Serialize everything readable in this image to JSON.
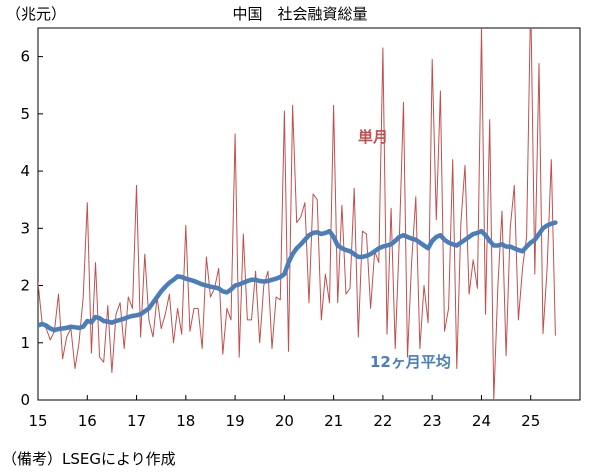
{
  "chart_data": {
    "type": "line",
    "unit_label": "（兆元）",
    "title": "中国　社会融資総量",
    "xlabel": "",
    "ylabel": "",
    "x_ticks": [
      "15",
      "16",
      "17",
      "18",
      "19",
      "20",
      "21",
      "22",
      "23",
      "24",
      "25"
    ],
    "y_ticks": [
      "0",
      "1",
      "2",
      "3",
      "4",
      "5",
      "6"
    ],
    "ylim": [
      0,
      6.5
    ],
    "xlim": [
      2015.0,
      2026.0
    ],
    "grid": false,
    "series": [
      {
        "name": "単月",
        "color": "#c0504d",
        "x": [
          2015.0,
          2015.083,
          2015.167,
          2015.25,
          2015.333,
          2015.417,
          2015.5,
          2015.583,
          2015.667,
          2015.75,
          2015.833,
          2015.917,
          2016.0,
          2016.083,
          2016.167,
          2016.25,
          2016.333,
          2016.417,
          2016.5,
          2016.583,
          2016.667,
          2016.75,
          2016.833,
          2016.917,
          2017.0,
          2017.083,
          2017.167,
          2017.25,
          2017.333,
          2017.417,
          2017.5,
          2017.583,
          2017.667,
          2017.75,
          2017.833,
          2017.917,
          2018.0,
          2018.083,
          2018.167,
          2018.25,
          2018.333,
          2018.417,
          2018.5,
          2018.583,
          2018.667,
          2018.75,
          2018.833,
          2018.917,
          2019.0,
          2019.083,
          2019.167,
          2019.25,
          2019.333,
          2019.417,
          2019.5,
          2019.583,
          2019.667,
          2019.75,
          2019.833,
          2019.917,
          2020.0,
          2020.083,
          2020.167,
          2020.25,
          2020.333,
          2020.417,
          2020.5,
          2020.583,
          2020.667,
          2020.75,
          2020.833,
          2020.917,
          2021.0,
          2021.083,
          2021.167,
          2021.25,
          2021.333,
          2021.417,
          2021.5,
          2021.583,
          2021.667,
          2021.75,
          2021.833,
          2021.917,
          2022.0,
          2022.083,
          2022.167,
          2022.25,
          2022.333,
          2022.417,
          2022.5,
          2022.583,
          2022.667,
          2022.75,
          2022.833,
          2022.917,
          2023.0,
          2023.083,
          2023.167,
          2023.25,
          2023.333,
          2023.417,
          2023.5,
          2023.583,
          2023.667,
          2023.75,
          2023.833,
          2023.917,
          2024.0,
          2024.083,
          2024.167,
          2024.25,
          2024.333,
          2024.417,
          2024.5,
          2024.583,
          2024.667,
          2024.75,
          2024.833,
          2024.917,
          2025.0,
          2025.083,
          2025.167,
          2025.25,
          2025.333,
          2025.417,
          2025.5
        ],
        "values": [
          2.05,
          1.35,
          1.25,
          1.05,
          1.2,
          1.85,
          0.72,
          1.1,
          1.25,
          0.55,
          1.0,
          1.8,
          3.45,
          0.82,
          2.4,
          0.75,
          0.66,
          1.65,
          0.48,
          1.5,
          1.7,
          0.9,
          1.8,
          1.6,
          3.75,
          1.1,
          2.55,
          1.4,
          1.1,
          1.8,
          1.25,
          1.5,
          1.85,
          1.0,
          1.6,
          1.15,
          3.05,
          1.2,
          1.6,
          1.6,
          0.9,
          2.5,
          1.8,
          1.95,
          2.3,
          0.8,
          1.6,
          1.4,
          4.65,
          0.75,
          2.9,
          1.4,
          1.4,
          2.25,
          1.0,
          2.0,
          2.25,
          0.9,
          1.8,
          1.75,
          5.05,
          0.85,
          5.15,
          3.1,
          3.2,
          3.45,
          1.7,
          3.6,
          3.5,
          1.4,
          2.2,
          1.7,
          5.15,
          1.7,
          3.4,
          1.85,
          1.95,
          3.7,
          1.1,
          2.95,
          2.9,
          1.6,
          2.6,
          2.4,
          6.15,
          1.15,
          3.35,
          0.9,
          2.8,
          5.2,
          0.75,
          2.4,
          3.55,
          0.9,
          2.0,
          1.35,
          5.95,
          3.15,
          5.4,
          1.2,
          1.6,
          4.2,
          0.55,
          3.1,
          4.1,
          1.85,
          2.45,
          1.95,
          6.5,
          1.5,
          4.9,
          0.0,
          2.0,
          3.3,
          0.77,
          3.0,
          3.75,
          1.4,
          2.3,
          2.85,
          7.06,
          2.2,
          5.88,
          1.16,
          2.3,
          4.2,
          1.13
        ]
      },
      {
        "name": "12ヶ月平均",
        "color": "#4a7ebb",
        "x": [
          2015.0,
          2015.083,
          2015.167,
          2015.25,
          2015.333,
          2015.417,
          2015.5,
          2015.583,
          2015.667,
          2015.75,
          2015.833,
          2015.917,
          2016.0,
          2016.083,
          2016.167,
          2016.25,
          2016.333,
          2016.417,
          2016.5,
          2016.583,
          2016.667,
          2016.75,
          2016.833,
          2016.917,
          2017.0,
          2017.083,
          2017.167,
          2017.25,
          2017.333,
          2017.417,
          2017.5,
          2017.583,
          2017.667,
          2017.75,
          2017.833,
          2017.917,
          2018.0,
          2018.083,
          2018.167,
          2018.25,
          2018.333,
          2018.417,
          2018.5,
          2018.583,
          2018.667,
          2018.75,
          2018.833,
          2018.917,
          2019.0,
          2019.083,
          2019.167,
          2019.25,
          2019.333,
          2019.417,
          2019.5,
          2019.583,
          2019.667,
          2019.75,
          2019.833,
          2019.917,
          2020.0,
          2020.083,
          2020.167,
          2020.25,
          2020.333,
          2020.417,
          2020.5,
          2020.583,
          2020.667,
          2020.75,
          2020.833,
          2020.917,
          2021.0,
          2021.083,
          2021.167,
          2021.25,
          2021.333,
          2021.417,
          2021.5,
          2021.583,
          2021.667,
          2021.75,
          2021.833,
          2021.917,
          2022.0,
          2022.083,
          2022.167,
          2022.25,
          2022.333,
          2022.417,
          2022.5,
          2022.583,
          2022.667,
          2022.75,
          2022.833,
          2022.917,
          2023.0,
          2023.083,
          2023.167,
          2023.25,
          2023.333,
          2023.417,
          2023.5,
          2023.583,
          2023.667,
          2023.75,
          2023.833,
          2023.917,
          2024.0,
          2024.083,
          2024.167,
          2024.25,
          2024.333,
          2024.417,
          2024.5,
          2024.583,
          2024.667,
          2024.75,
          2024.833,
          2024.917,
          2025.0,
          2025.083,
          2025.167,
          2025.25,
          2025.333,
          2025.417,
          2025.5
        ],
        "values": [
          1.3,
          1.33,
          1.3,
          1.25,
          1.22,
          1.24,
          1.25,
          1.26,
          1.28,
          1.27,
          1.26,
          1.28,
          1.38,
          1.36,
          1.45,
          1.43,
          1.38,
          1.37,
          1.35,
          1.38,
          1.4,
          1.42,
          1.45,
          1.47,
          1.48,
          1.5,
          1.55,
          1.6,
          1.7,
          1.8,
          1.9,
          1.98,
          2.05,
          2.1,
          2.16,
          2.15,
          2.12,
          2.1,
          2.08,
          2.05,
          2.02,
          2.0,
          1.98,
          1.97,
          1.95,
          1.9,
          1.88,
          1.93,
          2.0,
          2.02,
          2.05,
          2.08,
          2.1,
          2.1,
          2.08,
          2.07,
          2.08,
          2.1,
          2.12,
          2.15,
          2.2,
          2.4,
          2.55,
          2.65,
          2.72,
          2.8,
          2.88,
          2.92,
          2.93,
          2.9,
          2.92,
          2.95,
          2.85,
          2.7,
          2.65,
          2.62,
          2.6,
          2.55,
          2.5,
          2.5,
          2.52,
          2.55,
          2.6,
          2.65,
          2.68,
          2.7,
          2.72,
          2.78,
          2.85,
          2.88,
          2.85,
          2.82,
          2.8,
          2.75,
          2.7,
          2.65,
          2.78,
          2.85,
          2.88,
          2.8,
          2.75,
          2.72,
          2.7,
          2.75,
          2.8,
          2.85,
          2.9,
          2.92,
          2.95,
          2.88,
          2.78,
          2.7,
          2.7,
          2.72,
          2.68,
          2.68,
          2.65,
          2.62,
          2.6,
          2.68,
          2.75,
          2.8,
          2.9,
          3.0,
          3.05,
          3.08,
          3.1
        ]
      }
    ],
    "annotations": [
      {
        "text": "単月",
        "series": 0
      },
      {
        "text": "12ヶ月平均",
        "series": 1
      }
    ]
  },
  "footnote": "（備考）LSEGにより作成"
}
